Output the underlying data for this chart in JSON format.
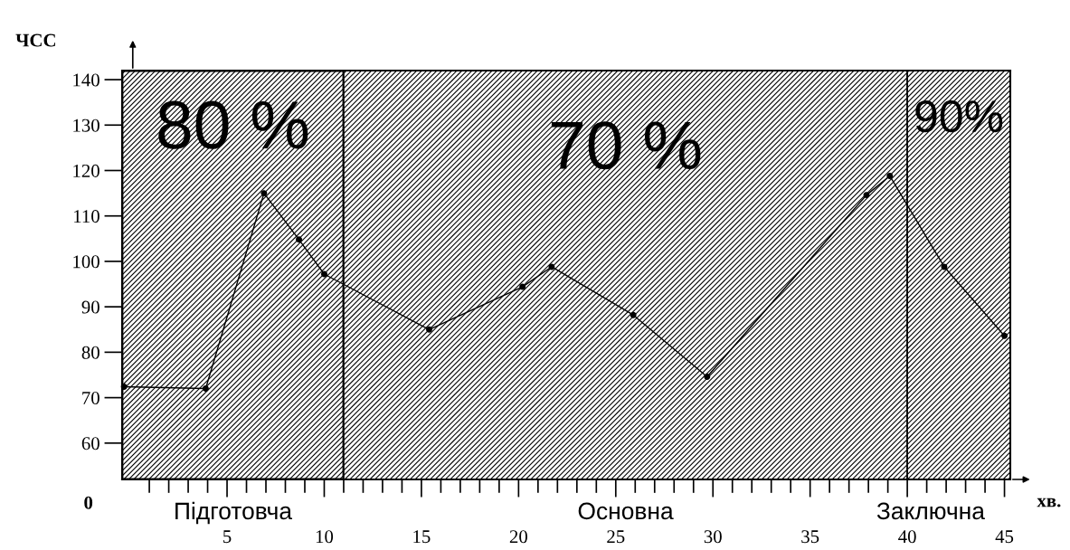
{
  "chart_data": {
    "type": "line",
    "xlabel": "хв.",
    "ylabel": "ЧСС",
    "x": [
      -0.3,
      3.9,
      6.9,
      8.7,
      10.0,
      15.4,
      20.2,
      21.7,
      25.9,
      29.7,
      37.9,
      39.1,
      41.9,
      45.0
    ],
    "series": [
      {
        "color": "#000000",
        "values": [
          72.4,
          72,
          115,
          104.8,
          97.2,
          85,
          94.4,
          98.8,
          88.2,
          74.6,
          114.6,
          118.8,
          98.8,
          83.6
        ]
      }
    ],
    "xlim": [
      -0.4,
      45.3
    ],
    "ylim": [
      52,
      142
    ],
    "xticks": [
      {
        "value": 1,
        "label": null
      },
      {
        "value": 2,
        "label": null
      },
      {
        "value": 3,
        "label": null
      },
      {
        "value": 4,
        "label": null
      },
      5,
      {
        "value": 6,
        "label": null
      },
      {
        "value": 7,
        "label": null
      },
      {
        "value": 8,
        "label": null
      },
      {
        "value": 9,
        "label": null
      },
      10,
      {
        "value": 11,
        "label": null
      },
      {
        "value": 12,
        "label": null
      },
      {
        "value": 13,
        "label": null
      },
      {
        "value": 14,
        "label": null
      },
      15,
      {
        "value": 16,
        "label": null
      },
      {
        "value": 17,
        "label": null
      },
      {
        "value": 18,
        "label": null
      },
      {
        "value": 19,
        "label": null
      },
      20,
      {
        "value": 21,
        "label": null
      },
      {
        "value": 22,
        "label": null
      },
      {
        "value": 23,
        "label": null
      },
      {
        "value": 24,
        "label": null
      },
      25,
      {
        "value": 26,
        "label": null
      },
      {
        "value": 27,
        "label": null
      },
      {
        "value": 28,
        "label": null
      },
      {
        "value": 29,
        "label": null
      },
      30,
      {
        "value": 31,
        "label": null
      },
      {
        "value": 32,
        "label": null
      },
      {
        "value": 33,
        "label": null
      },
      {
        "value": 34,
        "label": null
      },
      35,
      {
        "value": 36,
        "label": null
      },
      {
        "value": 37,
        "label": null
      },
      {
        "value": 38,
        "label": null
      },
      {
        "value": 39,
        "label": null
      },
      40,
      {
        "value": 41,
        "label": null
      },
      {
        "value": 42,
        "label": null
      },
      {
        "value": 43,
        "label": null
      },
      {
        "value": 44,
        "label": null
      },
      45
    ],
    "yticks": [
      60,
      70,
      80,
      90,
      100,
      110,
      120,
      130,
      140
    ],
    "bands": [
      {
        "axis": "x",
        "from": -0.4,
        "to": 11.0,
        "label": "80 %",
        "color": "#000000"
      },
      {
        "axis": "x",
        "from": 11.0,
        "to": 40.0,
        "label": "70 %",
        "color": "#000000"
      },
      {
        "axis": "x",
        "from": 40.0,
        "to": 45.3,
        "label": "90%",
        "color": "#000000"
      }
    ],
    "annotations": [
      "Підготовча",
      "Основна",
      "Заключна",
      "0"
    ],
    "grid": false,
    "legend": false,
    "marker": "circle",
    "line_style": "solid"
  }
}
